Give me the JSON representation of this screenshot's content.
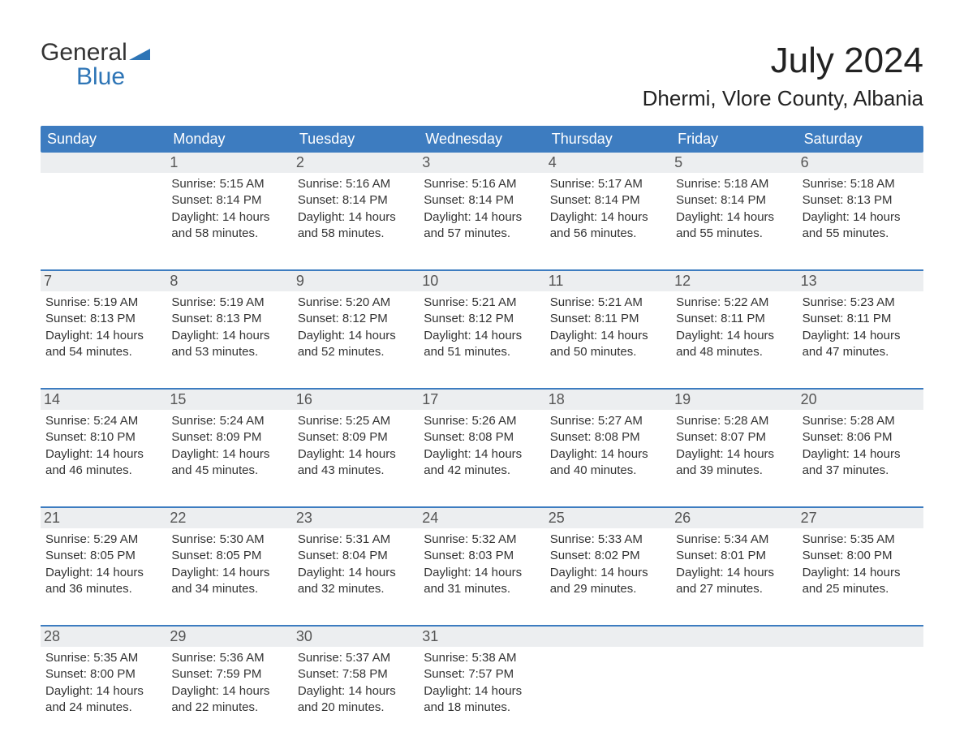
{
  "logo": {
    "line1": "General",
    "line2": "Blue",
    "mark_color": "#2e75b6"
  },
  "title": "July 2024",
  "location": "Dhermi, Vlore County, Albania",
  "colors": {
    "header_bg": "#3d7cc0",
    "header_fg": "#ffffff",
    "daynum_bg": "#eceef0",
    "week_border": "#3d7cc0",
    "text": "#333333",
    "background": "#ffffff"
  },
  "fonts": {
    "title_pt": 44,
    "location_pt": 26,
    "dow_pt": 18,
    "daynum_pt": 18,
    "body_pt": 15
  },
  "days_of_week": [
    "Sunday",
    "Monday",
    "Tuesday",
    "Wednesday",
    "Thursday",
    "Friday",
    "Saturday"
  ],
  "weeks": [
    [
      {
        "n": "",
        "sr": "",
        "ss": "",
        "dl": ""
      },
      {
        "n": "1",
        "sr": "Sunrise: 5:15 AM",
        "ss": "Sunset: 8:14 PM",
        "dl": "Daylight: 14 hours and 58 minutes."
      },
      {
        "n": "2",
        "sr": "Sunrise: 5:16 AM",
        "ss": "Sunset: 8:14 PM",
        "dl": "Daylight: 14 hours and 58 minutes."
      },
      {
        "n": "3",
        "sr": "Sunrise: 5:16 AM",
        "ss": "Sunset: 8:14 PM",
        "dl": "Daylight: 14 hours and 57 minutes."
      },
      {
        "n": "4",
        "sr": "Sunrise: 5:17 AM",
        "ss": "Sunset: 8:14 PM",
        "dl": "Daylight: 14 hours and 56 minutes."
      },
      {
        "n": "5",
        "sr": "Sunrise: 5:18 AM",
        "ss": "Sunset: 8:14 PM",
        "dl": "Daylight: 14 hours and 55 minutes."
      },
      {
        "n": "6",
        "sr": "Sunrise: 5:18 AM",
        "ss": "Sunset: 8:13 PM",
        "dl": "Daylight: 14 hours and 55 minutes."
      }
    ],
    [
      {
        "n": "7",
        "sr": "Sunrise: 5:19 AM",
        "ss": "Sunset: 8:13 PM",
        "dl": "Daylight: 14 hours and 54 minutes."
      },
      {
        "n": "8",
        "sr": "Sunrise: 5:19 AM",
        "ss": "Sunset: 8:13 PM",
        "dl": "Daylight: 14 hours and 53 minutes."
      },
      {
        "n": "9",
        "sr": "Sunrise: 5:20 AM",
        "ss": "Sunset: 8:12 PM",
        "dl": "Daylight: 14 hours and 52 minutes."
      },
      {
        "n": "10",
        "sr": "Sunrise: 5:21 AM",
        "ss": "Sunset: 8:12 PM",
        "dl": "Daylight: 14 hours and 51 minutes."
      },
      {
        "n": "11",
        "sr": "Sunrise: 5:21 AM",
        "ss": "Sunset: 8:11 PM",
        "dl": "Daylight: 14 hours and 50 minutes."
      },
      {
        "n": "12",
        "sr": "Sunrise: 5:22 AM",
        "ss": "Sunset: 8:11 PM",
        "dl": "Daylight: 14 hours and 48 minutes."
      },
      {
        "n": "13",
        "sr": "Sunrise: 5:23 AM",
        "ss": "Sunset: 8:11 PM",
        "dl": "Daylight: 14 hours and 47 minutes."
      }
    ],
    [
      {
        "n": "14",
        "sr": "Sunrise: 5:24 AM",
        "ss": "Sunset: 8:10 PM",
        "dl": "Daylight: 14 hours and 46 minutes."
      },
      {
        "n": "15",
        "sr": "Sunrise: 5:24 AM",
        "ss": "Sunset: 8:09 PM",
        "dl": "Daylight: 14 hours and 45 minutes."
      },
      {
        "n": "16",
        "sr": "Sunrise: 5:25 AM",
        "ss": "Sunset: 8:09 PM",
        "dl": "Daylight: 14 hours and 43 minutes."
      },
      {
        "n": "17",
        "sr": "Sunrise: 5:26 AM",
        "ss": "Sunset: 8:08 PM",
        "dl": "Daylight: 14 hours and 42 minutes."
      },
      {
        "n": "18",
        "sr": "Sunrise: 5:27 AM",
        "ss": "Sunset: 8:08 PM",
        "dl": "Daylight: 14 hours and 40 minutes."
      },
      {
        "n": "19",
        "sr": "Sunrise: 5:28 AM",
        "ss": "Sunset: 8:07 PM",
        "dl": "Daylight: 14 hours and 39 minutes."
      },
      {
        "n": "20",
        "sr": "Sunrise: 5:28 AM",
        "ss": "Sunset: 8:06 PM",
        "dl": "Daylight: 14 hours and 37 minutes."
      }
    ],
    [
      {
        "n": "21",
        "sr": "Sunrise: 5:29 AM",
        "ss": "Sunset: 8:05 PM",
        "dl": "Daylight: 14 hours and 36 minutes."
      },
      {
        "n": "22",
        "sr": "Sunrise: 5:30 AM",
        "ss": "Sunset: 8:05 PM",
        "dl": "Daylight: 14 hours and 34 minutes."
      },
      {
        "n": "23",
        "sr": "Sunrise: 5:31 AM",
        "ss": "Sunset: 8:04 PM",
        "dl": "Daylight: 14 hours and 32 minutes."
      },
      {
        "n": "24",
        "sr": "Sunrise: 5:32 AM",
        "ss": "Sunset: 8:03 PM",
        "dl": "Daylight: 14 hours and 31 minutes."
      },
      {
        "n": "25",
        "sr": "Sunrise: 5:33 AM",
        "ss": "Sunset: 8:02 PM",
        "dl": "Daylight: 14 hours and 29 minutes."
      },
      {
        "n": "26",
        "sr": "Sunrise: 5:34 AM",
        "ss": "Sunset: 8:01 PM",
        "dl": "Daylight: 14 hours and 27 minutes."
      },
      {
        "n": "27",
        "sr": "Sunrise: 5:35 AM",
        "ss": "Sunset: 8:00 PM",
        "dl": "Daylight: 14 hours and 25 minutes."
      }
    ],
    [
      {
        "n": "28",
        "sr": "Sunrise: 5:35 AM",
        "ss": "Sunset: 8:00 PM",
        "dl": "Daylight: 14 hours and 24 minutes."
      },
      {
        "n": "29",
        "sr": "Sunrise: 5:36 AM",
        "ss": "Sunset: 7:59 PM",
        "dl": "Daylight: 14 hours and 22 minutes."
      },
      {
        "n": "30",
        "sr": "Sunrise: 5:37 AM",
        "ss": "Sunset: 7:58 PM",
        "dl": "Daylight: 14 hours and 20 minutes."
      },
      {
        "n": "31",
        "sr": "Sunrise: 5:38 AM",
        "ss": "Sunset: 7:57 PM",
        "dl": "Daylight: 14 hours and 18 minutes."
      },
      {
        "n": "",
        "sr": "",
        "ss": "",
        "dl": ""
      },
      {
        "n": "",
        "sr": "",
        "ss": "",
        "dl": ""
      },
      {
        "n": "",
        "sr": "",
        "ss": "",
        "dl": ""
      }
    ]
  ]
}
